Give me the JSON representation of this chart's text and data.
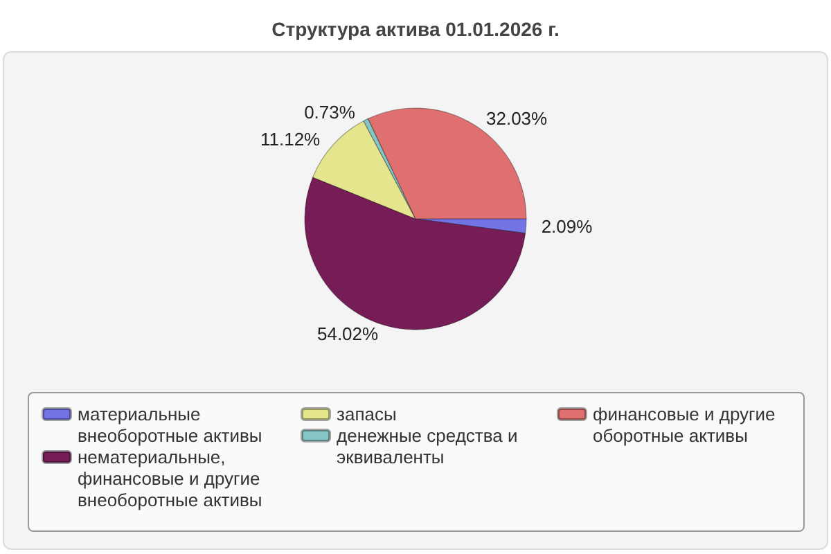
{
  "chart_data": {
    "type": "pie",
    "title": "Структура актива 01.01.2026 г.",
    "categories": [
      "материальные внеоборотные активы",
      "нематериальные, финансовые и другие внеоборотные активы",
      "запасы",
      "денежные средства и эквиваленты",
      "финансовые и другие оборотные активы"
    ],
    "values": [
      2.09,
      54.02,
      11.12,
      0.73,
      32.03
    ],
    "colors": [
      "#7373e6",
      "#761c56",
      "#e5e58e",
      "#86c6c6",
      "#e07070"
    ],
    "value_labels": [
      "2.09%",
      "54.02%",
      "11.12%",
      "0.73%",
      "32.03%"
    ],
    "legend": "bottom"
  }
}
